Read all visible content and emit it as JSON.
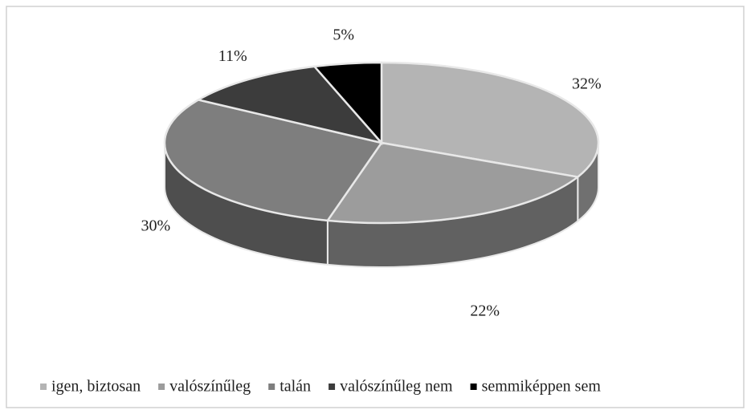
{
  "chart_data": {
    "type": "pie",
    "categories": [
      "igen, biztosan",
      "valószínűleg",
      "talán",
      "valószínűleg nem",
      "semmiképpen sem"
    ],
    "values": [
      32,
      22,
      30,
      11,
      5
    ],
    "value_labels": [
      "32%",
      "22%",
      "30%",
      "11%",
      "5%"
    ],
    "colors": [
      "#b4b4b4",
      "#9c9c9c",
      "#7e7e7e",
      "#3c3c3c",
      "#000000"
    ],
    "legend": "bottom"
  }
}
